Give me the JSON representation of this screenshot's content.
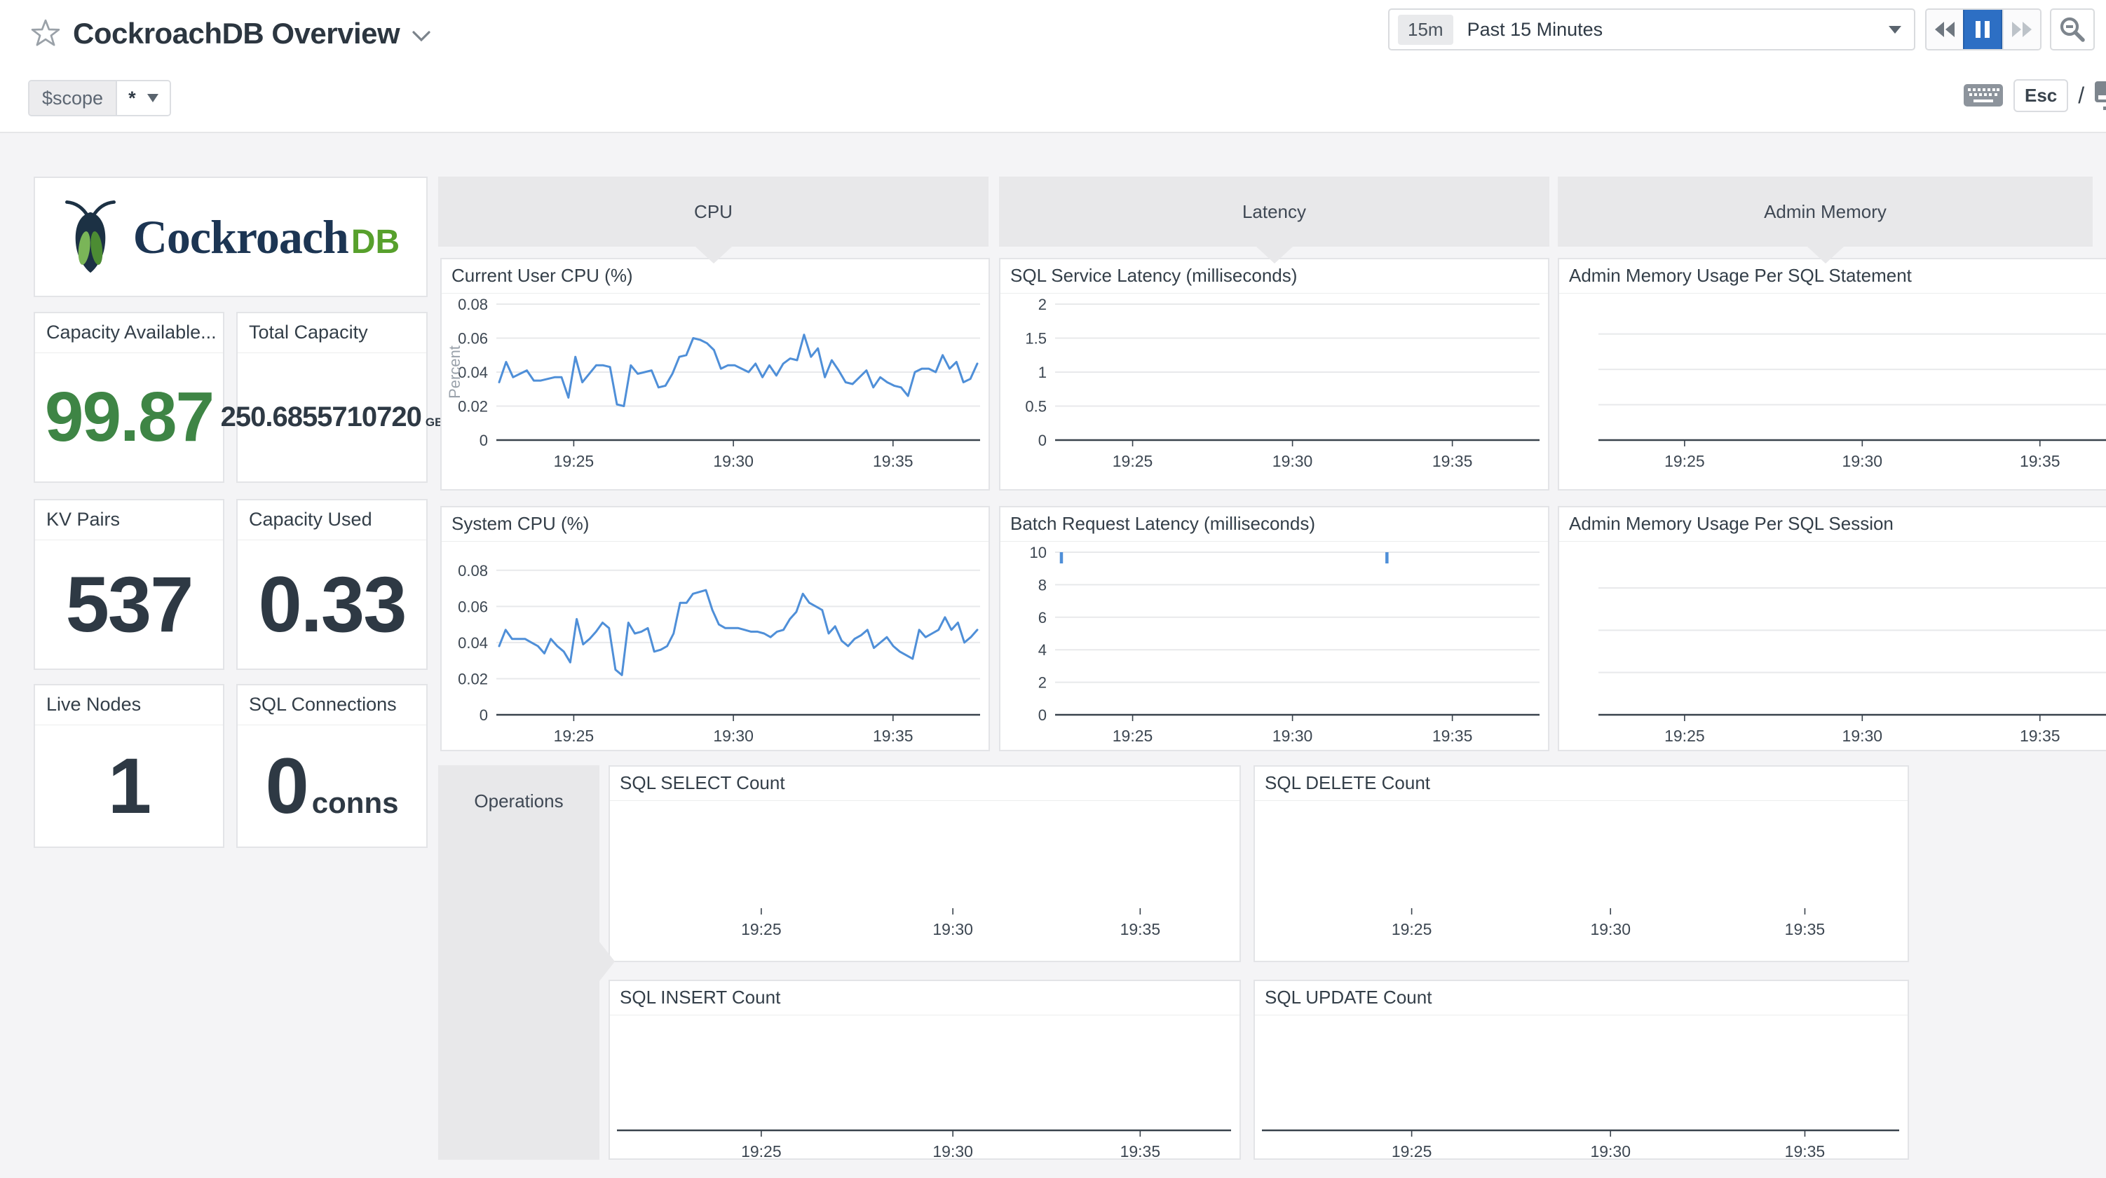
{
  "header": {
    "title": "CockroachDB Overview"
  },
  "toolbar": {
    "range_badge": "15m",
    "range_label": "Past 15 Minutes",
    "shortcut_key": "Esc",
    "shortcut_sep": "/"
  },
  "scope": {
    "label": "$scope",
    "value": "*"
  },
  "logo": {
    "brand": "Cockroach",
    "brand_suffix": "DB"
  },
  "groups": {
    "cpu": "CPU",
    "latency": "Latency",
    "admin_memory": "Admin Memory",
    "operations": "Operations"
  },
  "colors": {
    "accent_blue": "#2d6fc4",
    "line_blue": "#4f8fd8",
    "value_green": "#3e8545"
  },
  "stats": {
    "capacity_available": {
      "title": "Capacity Available...",
      "value": "99.87"
    },
    "total_capacity": {
      "title": "Total Capacity",
      "value": "250.6855710720",
      "unit": "GB"
    },
    "kv_pairs": {
      "title": "KV Pairs",
      "value": "537"
    },
    "capacity_used": {
      "title": "Capacity Used",
      "value": "0.33"
    },
    "live_nodes": {
      "title": "Live Nodes",
      "value": "1"
    },
    "sql_connections": {
      "title": "SQL Connections",
      "value": "0",
      "unit": "conns"
    }
  },
  "chart_data": [
    {
      "type": "line",
      "title": "Current User CPU (%)",
      "ylabel": "Percent",
      "ymax": 0.08,
      "ylim": [
        0,
        0.08
      ],
      "yticks": [
        {
          "v": 0.08,
          "l": "0.08"
        },
        {
          "v": 0.06,
          "l": "0.06"
        },
        {
          "v": 0.04,
          "l": "0.04"
        },
        {
          "v": 0.02,
          "l": "0.02"
        },
        {
          "v": 0,
          "l": "0"
        }
      ],
      "xticks": [
        {
          "f": 0.16,
          "l": "19:25"
        },
        {
          "f": 0.49,
          "l": "19:30"
        },
        {
          "f": 0.82,
          "l": "19:35"
        }
      ],
      "axis_line": true,
      "pad_left": 78,
      "pad_bottom": 70,
      "color": "#4f8fd8",
      "values": [
        0.034,
        0.046,
        0.037,
        0.039,
        0.041,
        0.035,
        0.035,
        0.036,
        0.037,
        0.037,
        0.025,
        0.049,
        0.034,
        0.039,
        0.044,
        0.044,
        0.043,
        0.021,
        0.02,
        0.044,
        0.039,
        0.04,
        0.041,
        0.031,
        0.032,
        0.039,
        0.049,
        0.05,
        0.06,
        0.059,
        0.057,
        0.053,
        0.042,
        0.044,
        0.044,
        0.042,
        0.04,
        0.045,
        0.037,
        0.044,
        0.038,
        0.045,
        0.048,
        0.047,
        0.062,
        0.049,
        0.054,
        0.037,
        0.047,
        0.041,
        0.034,
        0.033,
        0.037,
        0.041,
        0.031,
        0.037,
        0.034,
        0.032,
        0.031,
        0.026,
        0.04,
        0.042,
        0.042,
        0.04,
        0.05,
        0.042,
        0.046,
        0.034,
        0.036,
        0.045
      ]
    },
    {
      "type": "line",
      "title": "System CPU (%)",
      "ymax": 0.09,
      "ylim": [
        0,
        0.09
      ],
      "yticks": [
        {
          "v": 0.08,
          "l": "0.08"
        },
        {
          "v": 0.06,
          "l": "0.06"
        },
        {
          "v": 0.04,
          "l": "0.04"
        },
        {
          "v": 0.02,
          "l": "0.02"
        },
        {
          "v": 0,
          "l": "0"
        }
      ],
      "xticks": [
        {
          "f": 0.16,
          "l": "19:25"
        },
        {
          "f": 0.49,
          "l": "19:30"
        },
        {
          "f": 0.82,
          "l": "19:35"
        }
      ],
      "axis_line": true,
      "pad_left": 78,
      "pad_bottom": 50,
      "color": "#4f8fd8",
      "values": [
        0.038,
        0.047,
        0.042,
        0.042,
        0.042,
        0.04,
        0.038,
        0.034,
        0.042,
        0.038,
        0.035,
        0.029,
        0.053,
        0.039,
        0.042,
        0.046,
        0.051,
        0.048,
        0.025,
        0.022,
        0.051,
        0.045,
        0.046,
        0.048,
        0.035,
        0.036,
        0.038,
        0.045,
        0.062,
        0.062,
        0.067,
        0.068,
        0.069,
        0.058,
        0.05,
        0.048,
        0.048,
        0.048,
        0.047,
        0.046,
        0.046,
        0.045,
        0.043,
        0.046,
        0.047,
        0.053,
        0.057,
        0.067,
        0.062,
        0.06,
        0.058,
        0.045,
        0.049,
        0.041,
        0.038,
        0.042,
        0.044,
        0.047,
        0.037,
        0.04,
        0.043,
        0.038,
        0.035,
        0.033,
        0.031,
        0.047,
        0.043,
        0.045,
        0.047,
        0.054,
        0.047,
        0.051,
        0.04,
        0.043,
        0.047
      ]
    },
    {
      "type": "line",
      "title": "SQL Service Latency (milliseconds)",
      "ymax": 2,
      "ylim": [
        0,
        2
      ],
      "yticks": [
        {
          "v": 2,
          "l": "2"
        },
        {
          "v": 1.5,
          "l": "1.5"
        },
        {
          "v": 1,
          "l": "1"
        },
        {
          "v": 0.5,
          "l": "0.5"
        },
        {
          "v": 0,
          "l": "0"
        }
      ],
      "xticks": [
        {
          "f": 0.16,
          "l": "19:25"
        },
        {
          "f": 0.49,
          "l": "19:30"
        },
        {
          "f": 0.82,
          "l": "19:35"
        }
      ],
      "axis_line": true,
      "pad_left": 78,
      "pad_bottom": 70,
      "color": "#4f8fd8",
      "values": []
    },
    {
      "type": "line",
      "title": "Batch Request Latency (milliseconds)",
      "ymax": 10,
      "ylim": [
        0,
        10
      ],
      "yticks": [
        {
          "v": 10,
          "l": "10"
        },
        {
          "v": 8,
          "l": "8"
        },
        {
          "v": 6,
          "l": "6"
        },
        {
          "v": 4,
          "l": "4"
        },
        {
          "v": 2,
          "l": "2"
        },
        {
          "v": 0,
          "l": "0"
        }
      ],
      "xticks": [
        {
          "f": 0.16,
          "l": "19:25"
        },
        {
          "f": 0.49,
          "l": "19:30"
        },
        {
          "f": 0.82,
          "l": "19:35"
        }
      ],
      "axis_line": true,
      "pad_left": 78,
      "pad_bottom": 50,
      "color": "#4f8fd8",
      "values": [],
      "markers": [
        {
          "f": 0.013,
          "v": 10
        },
        {
          "f": 0.685,
          "v": 10
        }
      ]
    },
    {
      "type": "line",
      "title": "Admin Memory Usage Per SQL Statement",
      "ymax": 1,
      "ylim": [
        0,
        1
      ],
      "yticks": [
        {
          "v": 0.78
        },
        {
          "v": 0.52
        },
        {
          "v": 0.26
        }
      ],
      "xticks": [
        {
          "f": 0.16,
          "l": "19:25"
        },
        {
          "f": 0.49,
          "l": "19:30"
        },
        {
          "f": 0.82,
          "l": "19:35"
        }
      ],
      "axis_line": true,
      "pad_left": 56,
      "pad_bottom": 70,
      "color": "#4f8fd8",
      "values": []
    },
    {
      "type": "line",
      "title": "Admin Memory Usage Per SQL Session",
      "ymax": 1,
      "ylim": [
        0,
        1
      ],
      "yticks": [
        {
          "v": 0.78
        },
        {
          "v": 0.52
        },
        {
          "v": 0.26
        }
      ],
      "xticks": [
        {
          "f": 0.16,
          "l": "19:25"
        },
        {
          "f": 0.49,
          "l": "19:30"
        },
        {
          "f": 0.82,
          "l": "19:35"
        }
      ],
      "axis_line": true,
      "pad_left": 56,
      "pad_bottom": 50,
      "color": "#4f8fd8",
      "values": []
    },
    {
      "type": "line",
      "title": "SQL SELECT Count",
      "ymax": 1,
      "ylim": [
        0,
        1
      ],
      "yticks": [],
      "xticks": [
        {
          "f": 0.235,
          "l": "19:25"
        },
        {
          "f": 0.547,
          "l": "19:30"
        },
        {
          "f": 0.852,
          "l": "19:35"
        }
      ],
      "axis_line": false,
      "pad_left": 10,
      "pad_bottom": 75,
      "color": "#4f8fd8",
      "values": []
    },
    {
      "type": "line",
      "title": "SQL DELETE Count",
      "ymax": 1,
      "ylim": [
        0,
        1
      ],
      "yticks": [],
      "xticks": [
        {
          "f": 0.235,
          "l": "19:25"
        },
        {
          "f": 0.547,
          "l": "19:30"
        },
        {
          "f": 0.852,
          "l": "19:35"
        }
      ],
      "axis_line": false,
      "pad_left": 10,
      "pad_bottom": 75,
      "color": "#4f8fd8",
      "values": []
    },
    {
      "type": "line",
      "title": "SQL INSERT Count",
      "ymax": 1,
      "ylim": [
        0,
        1
      ],
      "yticks": [],
      "xticks": [
        {
          "f": 0.235,
          "l": "19:25"
        },
        {
          "f": 0.547,
          "l": "19:30"
        },
        {
          "f": 0.852,
          "l": "19:35"
        }
      ],
      "axis_line": true,
      "pad_left": 10,
      "pad_bottom": 40,
      "color": "#4f8fd8",
      "values": []
    },
    {
      "type": "line",
      "title": "SQL UPDATE Count",
      "ymax": 1,
      "ylim": [
        0,
        1
      ],
      "yticks": [],
      "xticks": [
        {
          "f": 0.235,
          "l": "19:25"
        },
        {
          "f": 0.547,
          "l": "19:30"
        },
        {
          "f": 0.852,
          "l": "19:35"
        }
      ],
      "axis_line": true,
      "pad_left": 10,
      "pad_bottom": 40,
      "color": "#4f8fd8",
      "values": []
    }
  ]
}
